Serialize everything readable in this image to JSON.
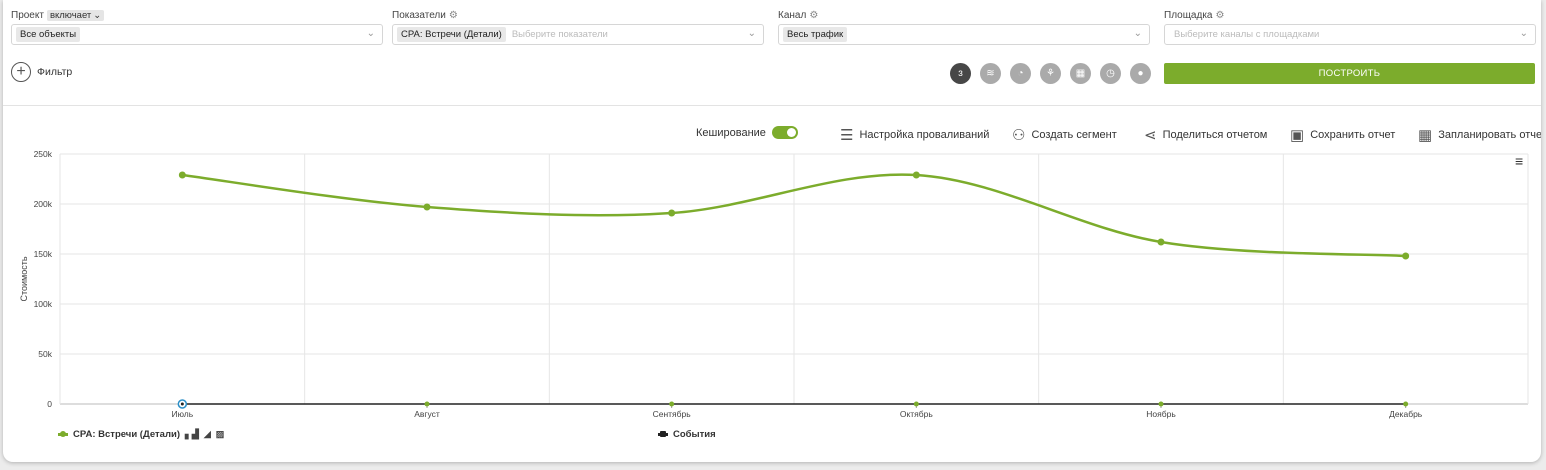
{
  "filters": {
    "project": {
      "label": "Проект",
      "mode": "включает",
      "tag": "Все объекты"
    },
    "metrics": {
      "label": "Показатели",
      "tag": "CPA: Встречи (Детали)",
      "placeholder": "Выберите показатели"
    },
    "channel": {
      "label": "Канал",
      "tag": "Весь трафик"
    },
    "platform": {
      "label": "Площадка",
      "placeholder": "Выберите каналы с площадками"
    }
  },
  "filter_button": {
    "label": "Фильтр"
  },
  "view_icons": [
    {
      "name": "numbers-view-icon",
      "glyph": "ɜ",
      "active": true
    },
    {
      "name": "area-view-icon",
      "glyph": "≋",
      "active": false
    },
    {
      "name": "pie-view-icon",
      "glyph": "◔",
      "active": false
    },
    {
      "name": "map-view-icon",
      "glyph": "⚘",
      "active": false
    },
    {
      "name": "table-view-icon",
      "glyph": "▦",
      "active": false
    },
    {
      "name": "gauge-view-icon",
      "glyph": "◷",
      "active": false
    },
    {
      "name": "drop-view-icon",
      "glyph": "●",
      "active": false
    }
  ],
  "build_button": {
    "label": "ПОСТРОИТЬ"
  },
  "toolbar": {
    "caching": "Кеширование",
    "drilldown": "Настройка проваливаний",
    "segment": "Создать сегмент",
    "share": "Поделиться отчетом",
    "save": "Сохранить отчет",
    "schedule": "Запланировать отчет"
  },
  "colors": {
    "accent": "#7cac2c",
    "events": "#222222"
  },
  "chart_data": {
    "type": "line",
    "categories": [
      "Июль",
      "Август",
      "Сентябрь",
      "Октябрь",
      "Ноябрь",
      "Декабрь"
    ],
    "series": [
      {
        "name": "CPA: Встречи (Детали)",
        "values": [
          229000,
          197000,
          191000,
          229000,
          162000,
          148000
        ],
        "color": "#7cac2c"
      },
      {
        "name": "События",
        "values": [
          0,
          0,
          0,
          0,
          0,
          0
        ],
        "color": "#222222"
      }
    ],
    "ylabel": "Стоимость",
    "ylim": [
      0,
      250000
    ],
    "yticks": [
      0,
      50000,
      100000,
      150000,
      200000,
      250000
    ],
    "ytick_labels": [
      "0",
      "50k",
      "100k",
      "150k",
      "200k",
      "250k"
    ],
    "grid": true,
    "legend": "bottom-left"
  }
}
